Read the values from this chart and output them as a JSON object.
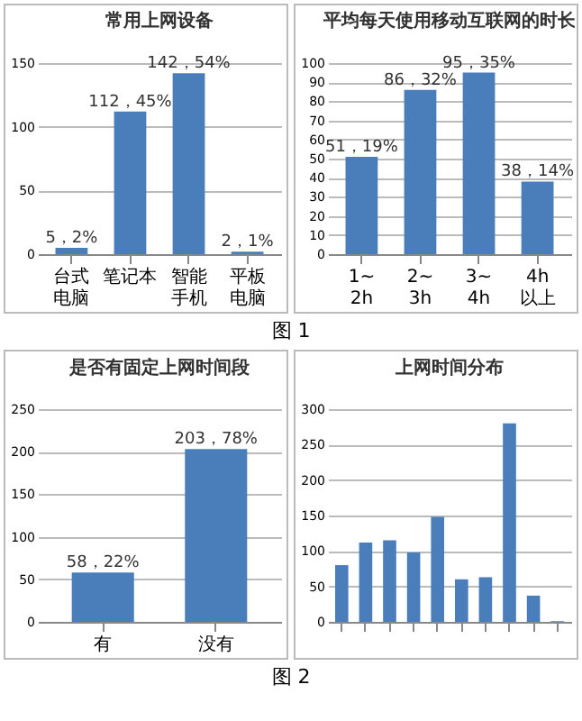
{
  "chart_data": [
    {
      "type": "bar",
      "title": "常用上网设备",
      "categories": [
        "台式电脑",
        "笔记本",
        "智能手机",
        "平板电脑"
      ],
      "values": [
        5,
        112,
        142,
        2
      ],
      "value_labels": [
        "5，2%",
        "112，45%",
        "142，54%",
        "2，1%"
      ],
      "color": "#4a7ebb",
      "ylim": [
        0,
        150
      ],
      "yticks": [
        0,
        50,
        100,
        150
      ],
      "grid": "y",
      "annotations": [
        "图 1"
      ]
    },
    {
      "type": "bar",
      "title": "平均每天使用移动互联网的时长",
      "categories": [
        "1~2h",
        "2~3h",
        "3~4h",
        "4h以上"
      ],
      "values": [
        51,
        86,
        95,
        38
      ],
      "value_labels": [
        "51，19%",
        "86，32%",
        "95，35%",
        "38，14%"
      ],
      "color": "#4a7ebb",
      "ylim": [
        0,
        100
      ],
      "yticks": [
        0,
        10,
        20,
        30,
        40,
        50,
        60,
        70,
        80,
        90,
        100
      ],
      "grid": "y"
    },
    {
      "type": "bar",
      "title": "是否有固定上网时间段",
      "categories": [
        "有",
        "没有"
      ],
      "values": [
        58,
        203
      ],
      "value_labels": [
        "58，22%",
        "203，78%"
      ],
      "color": "#4a7ebb",
      "ylim": [
        0,
        250
      ],
      "yticks": [
        0,
        50,
        100,
        150,
        200,
        250
      ],
      "grid": "y",
      "annotations": [
        "图 2"
      ]
    },
    {
      "type": "bar",
      "title": "上网时间分布",
      "categories": [
        null,
        null,
        null,
        null,
        null,
        null,
        null,
        null,
        null,
        null
      ],
      "values": [
        80,
        112,
        115,
        98,
        148,
        60,
        63,
        280,
        37,
        1
      ],
      "color": "#4a7ebb",
      "ylim": [
        0,
        300
      ],
      "yticks": [
        0,
        50,
        100,
        150,
        200,
        250,
        300
      ],
      "grid": "y"
    }
  ]
}
